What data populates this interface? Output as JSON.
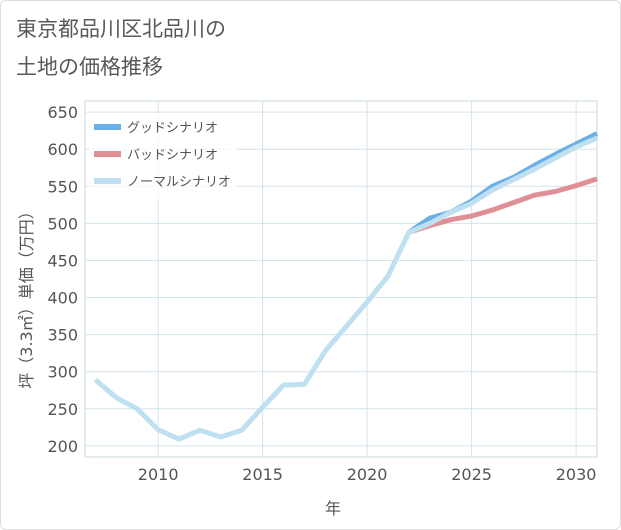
{
  "chart_data": {
    "type": "line",
    "title": "東京都品川区北品川の\n土地の価格推移",
    "xlabel": "年",
    "ylabel": "坪（3.3㎡）単価（万円）",
    "xlim": [
      2006.5,
      2031
    ],
    "ylim": [
      185,
      665
    ],
    "xticks": [
      2010,
      2015,
      2020,
      2025,
      2030
    ],
    "yticks": [
      200,
      250,
      300,
      350,
      400,
      450,
      500,
      550,
      600,
      650
    ],
    "grid": true,
    "legend_position": "top-left",
    "series": [
      {
        "name": "グッドシナリオ",
        "color": "#6ab0e6",
        "x": [
          2022,
          2023,
          2024,
          2025,
          2026,
          2027,
          2028,
          2029,
          2030,
          2031
        ],
        "y": [
          488,
          507,
          515,
          530,
          550,
          562,
          578,
          593,
          607,
          621
        ]
      },
      {
        "name": "バッドシナリオ",
        "color": "#e08f96",
        "x": [
          2022,
          2023,
          2024,
          2025,
          2026,
          2027,
          2028,
          2029,
          2030,
          2031
        ],
        "y": [
          488,
          497,
          505,
          510,
          518,
          528,
          538,
          543,
          551,
          560
        ]
      },
      {
        "name": "ノーマルシナリオ",
        "color": "#bfe0f0",
        "x": [
          2007,
          2008,
          2009,
          2010,
          2011,
          2012,
          2013,
          2014,
          2015,
          2016,
          2017,
          2018,
          2019,
          2020,
          2021,
          2022,
          2023,
          2024,
          2025,
          2026,
          2027,
          2028,
          2029,
          2030,
          2031
        ],
        "y": [
          289,
          265,
          250,
          222,
          209,
          221,
          212,
          221,
          252,
          282,
          283,
          328,
          361,
          394,
          429,
          488,
          500,
          515,
          527,
          545,
          559,
          573,
          588,
          603,
          615
        ]
      }
    ]
  }
}
